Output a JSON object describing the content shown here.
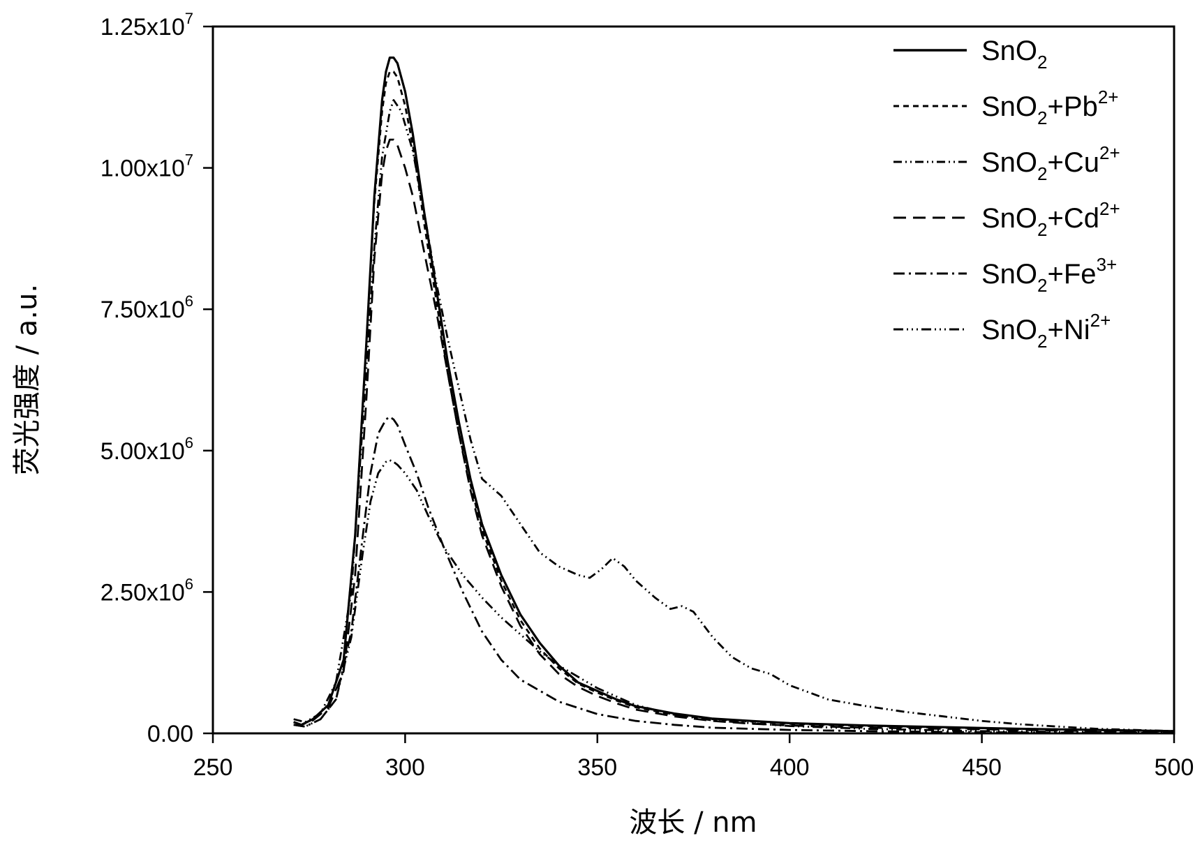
{
  "chart_data": {
    "type": "line",
    "xlabel": "波长 / nm",
    "ylabel": "荧光强度 / a.u.",
    "xlim": [
      250,
      500
    ],
    "ylim": [
      0,
      12500000
    ],
    "x_ticks": [
      250,
      300,
      350,
      400,
      450,
      500
    ],
    "x_tick_labels": [
      "250",
      "300",
      "350",
      "400",
      "450",
      "500"
    ],
    "y_ticks": [
      0,
      2500000,
      5000000,
      7500000,
      10000000,
      12500000
    ],
    "y_tick_labels": [
      {
        "mantissa": "0.00",
        "exponent": ""
      },
      {
        "mantissa": "2.50x10",
        "exponent": "6"
      },
      {
        "mantissa": "5.00x10",
        "exponent": "6"
      },
      {
        "mantissa": "7.50x10",
        "exponent": "6"
      },
      {
        "mantissa": "1.00x10",
        "exponent": "7"
      },
      {
        "mantissa": "1.25x10",
        "exponent": "7"
      }
    ],
    "grid": false,
    "legend_position": "top-right",
    "series": [
      {
        "name": "SnO2",
        "legend": {
          "base": "SnO",
          "sub": "2",
          "ion": "",
          "sup": ""
        },
        "dash": "solid",
        "x": [
          271,
          273,
          276,
          280,
          284,
          287,
          290,
          292,
          294,
          295,
          296,
          297,
          298,
          300,
          302,
          305,
          308,
          311,
          314,
          317,
          320,
          325,
          330,
          335,
          340,
          345,
          350,
          355,
          360,
          370,
          380,
          390,
          400,
          420,
          440,
          460,
          480,
          500
        ],
        "y": [
          200000,
          150000,
          250000,
          500000,
          1300000,
          3500000,
          7000000,
          9500000,
          11200000,
          11700000,
          11950000,
          11950000,
          11850000,
          11350000,
          10600000,
          9200000,
          7900000,
          6600000,
          5500000,
          4500000,
          3700000,
          2800000,
          2100000,
          1600000,
          1200000,
          900000,
          750000,
          600000,
          480000,
          350000,
          260000,
          220000,
          180000,
          140000,
          110000,
          80000,
          60000,
          40000
        ]
      },
      {
        "name": "SnO2+Pb2+",
        "legend": {
          "base": "SnO",
          "sub": "2",
          "ion": "+Pb",
          "sup": "2+"
        },
        "dash": "8 6",
        "x": [
          271,
          273,
          276,
          280,
          284,
          287,
          290,
          292,
          294,
          295,
          296,
          297,
          298,
          300,
          302,
          305,
          308,
          311,
          314,
          317,
          320,
          325,
          330,
          335,
          340,
          345,
          350,
          355,
          360,
          370,
          380,
          390,
          400,
          420,
          440,
          460,
          480,
          500
        ],
        "y": [
          200000,
          150000,
          250000,
          500000,
          1300000,
          3500000,
          7000000,
          9400000,
          11000000,
          11500000,
          11700000,
          11700000,
          11600000,
          11100000,
          10400000,
          9000000,
          7700000,
          6400000,
          5300000,
          4400000,
          3600000,
          2700000,
          2000000,
          1500000,
          1150000,
          880000,
          720000,
          580000,
          460000,
          330000,
          250000,
          210000,
          170000,
          130000,
          100000,
          80000,
          60000,
          40000
        ]
      },
      {
        "name": "SnO2+Cu2+",
        "legend": {
          "base": "SnO",
          "sub": "2",
          "ion": "+Cu",
          "sup": "2+"
        },
        "dash": "12 5 2 5 2 5",
        "x": [
          271,
          274,
          278,
          282,
          286,
          289,
          292,
          294,
          296,
          297,
          299,
          302,
          305,
          308,
          311,
          314,
          317,
          320,
          325,
          330,
          335,
          340,
          345,
          348,
          351,
          354,
          357,
          360,
          365,
          369,
          372,
          375,
          380,
          385,
          390,
          395,
          400,
          410,
          420,
          430,
          440,
          450,
          460,
          470,
          480,
          490,
          500
        ],
        "y": [
          250000,
          200000,
          350000,
          900000,
          2500000,
          5500000,
          8600000,
          10200000,
          11000000,
          11200000,
          11000000,
          10300000,
          9200000,
          8000000,
          7000000,
          6100000,
          5200000,
          4500000,
          4200000,
          3700000,
          3200000,
          2950000,
          2800000,
          2750000,
          2900000,
          3100000,
          2950000,
          2700000,
          2400000,
          2200000,
          2250000,
          2150000,
          1700000,
          1350000,
          1150000,
          1050000,
          850000,
          600000,
          480000,
          380000,
          300000,
          220000,
          160000,
          120000,
          80000,
          60000,
          40000
        ]
      },
      {
        "name": "SnO2+Cd2+",
        "legend": {
          "base": "SnO",
          "sub": "2",
          "ion": "+Cd",
          "sup": "2+"
        },
        "dash": "18 10",
        "x": [
          271,
          273,
          276,
          280,
          284,
          287,
          290,
          292,
          294,
          295,
          296,
          297,
          298,
          300,
          302,
          305,
          308,
          311,
          314,
          317,
          320,
          325,
          330,
          335,
          340,
          345,
          350,
          355,
          360,
          370,
          380,
          390,
          400,
          420,
          440,
          460,
          480,
          500
        ],
        "y": [
          200000,
          150000,
          230000,
          450000,
          1100000,
          2800000,
          6000000,
          8400000,
          9900000,
          10300000,
          10500000,
          10500000,
          10400000,
          10000000,
          9500000,
          8500000,
          7500000,
          6400000,
          5300000,
          4300000,
          3500000,
          2600000,
          1900000,
          1400000,
          1050000,
          820000,
          660000,
          530000,
          420000,
          300000,
          220000,
          170000,
          140000,
          100000,
          80000,
          60000,
          40000,
          30000
        ]
      },
      {
        "name": "SnO2+Fe3+",
        "legend": {
          "base": "SnO",
          "sub": "2",
          "ion": "+Fe",
          "sup": "3+"
        },
        "dash": "16 6 3 6",
        "x": [
          271,
          274,
          278,
          282,
          286,
          289,
          291,
          293,
          295,
          296,
          297,
          298,
          300,
          303,
          306,
          310,
          315,
          320,
          325,
          330,
          340,
          350,
          360,
          370,
          380,
          400,
          420,
          450,
          480,
          500
        ],
        "y": [
          150000,
          120000,
          250000,
          600000,
          1800000,
          3500000,
          4600000,
          5300000,
          5550000,
          5600000,
          5550000,
          5450000,
          5100000,
          4600000,
          4000000,
          3300000,
          2500000,
          1800000,
          1300000,
          950000,
          560000,
          340000,
          220000,
          150000,
          100000,
          60000,
          40000,
          20000,
          10000,
          5000
        ]
      },
      {
        "name": "SnO2+Ni2+",
        "legend": {
          "base": "SnO",
          "sub": "2",
          "ion": "+Ni",
          "sup": "2+"
        },
        "dash": "14 5 2 5 2 5 2 5",
        "x": [
          271,
          274,
          278,
          282,
          286,
          289,
          291,
          293,
          295,
          296,
          297,
          298,
          300,
          303,
          306,
          310,
          315,
          320,
          325,
          330,
          335,
          340,
          350,
          360,
          370,
          380,
          400,
          420,
          450,
          480,
          500
        ],
        "y": [
          150000,
          120000,
          250000,
          600000,
          1700000,
          3200000,
          4100000,
          4600000,
          4800000,
          4830000,
          4800000,
          4750000,
          4600000,
          4300000,
          3850000,
          3300000,
          2800000,
          2400000,
          2050000,
          1750000,
          1450000,
          1200000,
          800000,
          500000,
          330000,
          230000,
          130000,
          80000,
          40000,
          20000,
          10000
        ]
      }
    ]
  }
}
